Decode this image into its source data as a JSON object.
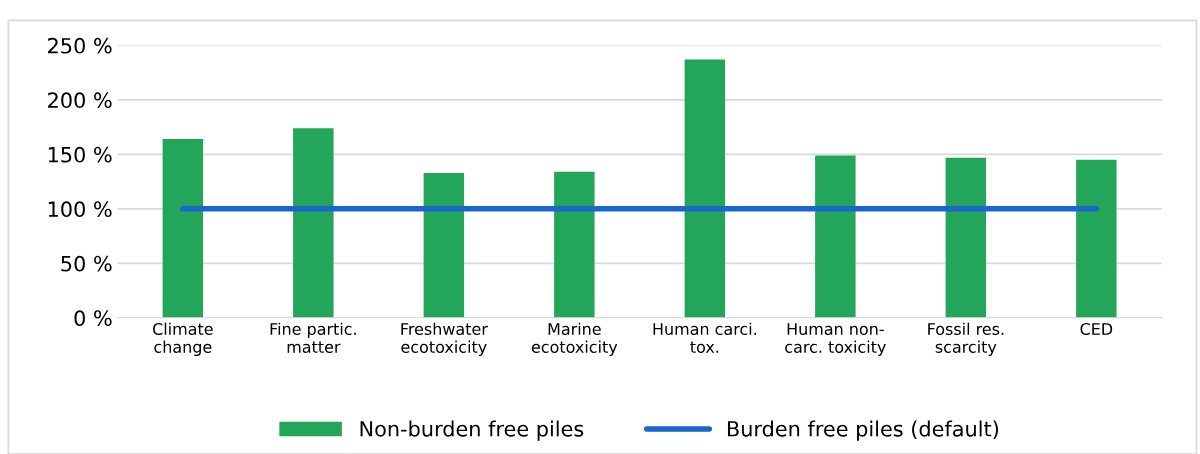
{
  "chart_data": {
    "type": "bar",
    "categories": [
      "Climate\nchange",
      "Fine partic.\nmatter",
      "Freshwater\necotoxicity",
      "Marine\necotoxicity",
      "Human carci.\ntox.",
      "Human non-\ncarc. toxicity",
      "Fossil res.\nscarcity",
      "CED"
    ],
    "series": [
      {
        "name": "Non-burden free piles",
        "color": "#24a65a",
        "values": [
          164,
          174,
          133,
          134,
          237,
          149,
          147,
          145
        ]
      },
      {
        "name": "Burden free piles (default)",
        "type": "line",
        "color": "#1a66cc",
        "values": [
          100,
          100,
          100,
          100,
          100,
          100,
          100,
          100
        ]
      }
    ],
    "ylim": [
      0,
      250
    ],
    "yticks": [
      {
        "value": 0,
        "label": "0 %"
      },
      {
        "value": 50,
        "label": "50 %"
      },
      {
        "value": 100,
        "label": "100 %"
      },
      {
        "value": 150,
        "label": "150 %"
      },
      {
        "value": 200,
        "label": "200 %"
      },
      {
        "value": 250,
        "label": "250 %"
      }
    ],
    "grid": "y",
    "legend": "bottom",
    "marker": "none",
    "line_style": "solid"
  }
}
